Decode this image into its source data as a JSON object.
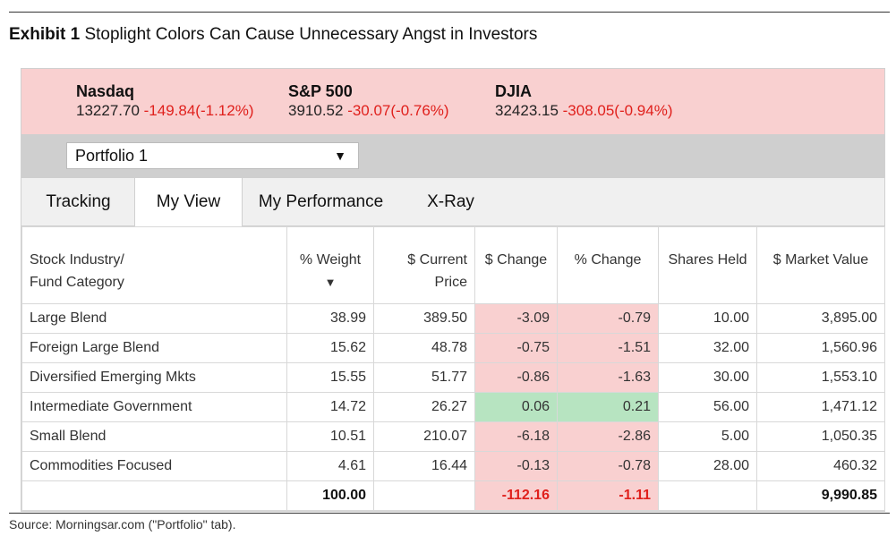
{
  "exhibit": {
    "label": "Exhibit 1",
    "title": "Stoplight Colors Can Cause Unnecessary Angst in Investors"
  },
  "tickers": [
    {
      "name": "Nasdaq",
      "value": "13227.70",
      "change": "-149.84(-1.12%)"
    },
    {
      "name": "S&P 500",
      "value": "3910.52",
      "change": "-30.07(-0.76%)"
    },
    {
      "name": "DJIA",
      "value": "32423.15",
      "change": "-308.05(-0.94%)"
    }
  ],
  "portfolio": {
    "selected": "Portfolio 1",
    "arrow": "▼"
  },
  "tabs": [
    "Tracking",
    "My View",
    "My Performance",
    "X-Ray"
  ],
  "active_tab": "My View",
  "table": {
    "headers": {
      "industry_l1": "Stock Industry/",
      "industry_l2": "Fund Category",
      "weight": "% Weight",
      "weight_sort": "▼",
      "price_l1": "$ Current",
      "price_l2": "Price",
      "dchange": "$ Change",
      "pchange": "% Change",
      "shares": "Shares Held",
      "mv": "$ Market Value"
    },
    "rows": [
      {
        "name": "Large Blend",
        "weight": "38.99",
        "price": "389.50",
        "dchange": "-3.09",
        "pchange": "-0.79",
        "shares": "10.00",
        "mv": "3,895.00"
      },
      {
        "name": "Foreign Large Blend",
        "weight": "15.62",
        "price": "48.78",
        "dchange": "-0.75",
        "pchange": "-1.51",
        "shares": "32.00",
        "mv": "1,560.96"
      },
      {
        "name": "Diversified Emerging Mkts",
        "weight": "15.55",
        "price": "51.77",
        "dchange": "-0.86",
        "pchange": "-1.63",
        "shares": "30.00",
        "mv": "1,553.10"
      },
      {
        "name": "Intermediate Government",
        "weight": "14.72",
        "price": "26.27",
        "dchange": "0.06",
        "pchange": "0.21",
        "shares": "56.00",
        "mv": "1,471.12"
      },
      {
        "name": "Small Blend",
        "weight": "10.51",
        "price": "210.07",
        "dchange": "-6.18",
        "pchange": "-2.86",
        "shares": "5.00",
        "mv": "1,050.35"
      },
      {
        "name": "Commodities Focused",
        "weight": "4.61",
        "price": "16.44",
        "dchange": "-0.13",
        "pchange": "-0.78",
        "shares": "28.00",
        "mv": "460.32"
      }
    ],
    "total": {
      "weight": "100.00",
      "dchange": "-112.16",
      "pchange": "-1.11",
      "mv": "9,990.85"
    }
  },
  "colors": {
    "negative_bg": "#f9d0d0",
    "negative_text": "#e0201c",
    "positive_bg": "#b7e4c1",
    "header_bg": "#f9d0d0"
  },
  "source": "Source: Morningsar.com (\"Portfolio\" tab)."
}
